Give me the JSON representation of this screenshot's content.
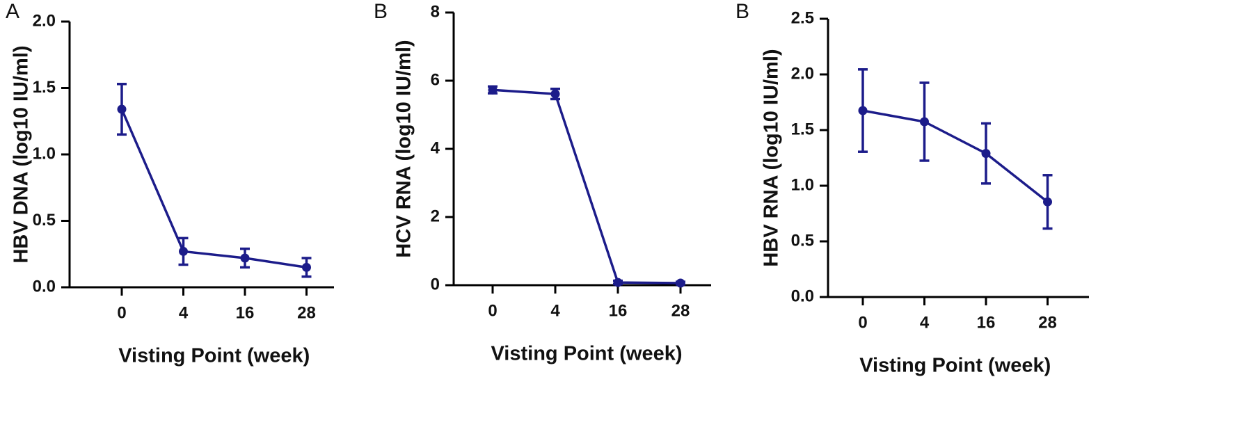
{
  "chart_data": [
    {
      "type": "line",
      "panel_label": "A",
      "ylabel": "HBV DNA (log10 IU/ml)",
      "xlabel": "Visting Point (week)",
      "categories": [
        "0",
        "4",
        "16",
        "28"
      ],
      "series": [
        {
          "color": "#1c1c8a",
          "values": [
            1.34,
            0.27,
            0.22,
            0.15
          ],
          "errors": [
            0.19,
            0.1,
            0.07,
            0.07
          ]
        }
      ],
      "ylim": [
        0,
        2
      ],
      "yticks": [
        {
          "value": 0,
          "label": "0.0"
        },
        0.5,
        {
          "value": 1,
          "label": "1.0"
        },
        1.5,
        {
          "value": 2,
          "label": "2.0"
        }
      ]
    },
    {
      "type": "line",
      "panel_label": "B",
      "ylabel": "HCV RNA (log10 IU/ml)",
      "xlabel": "Visting Point (week)",
      "categories": [
        "0",
        "4",
        "16",
        "28"
      ],
      "series": [
        {
          "color": "#1c1c8a",
          "values": [
            5.73,
            5.61,
            0.08,
            0.06
          ],
          "errors": [
            0.1,
            0.15,
            0.05,
            0.04
          ]
        }
      ],
      "ylim": [
        0,
        8
      ],
      "yticks": [
        0,
        2,
        4,
        6,
        8
      ]
    },
    {
      "type": "line",
      "panel_label": "B",
      "ylabel": "HBV RNA (log10 IU/ml)",
      "xlabel": "Visting Point (week)",
      "categories": [
        "0",
        "4",
        "16",
        "28"
      ],
      "series": [
        {
          "color": "#1c1c8a",
          "values": [
            1.675,
            1.575,
            1.29,
            0.855
          ],
          "errors": [
            0.37,
            0.35,
            0.27,
            0.24
          ]
        }
      ],
      "ylim": [
        0,
        2.5
      ],
      "yticks": [
        {
          "value": 0,
          "label": "0.0"
        },
        0.5,
        {
          "value": 1,
          "label": "1.0"
        },
        1.5,
        {
          "value": 2,
          "label": "2.0"
        },
        2.5
      ]
    }
  ]
}
